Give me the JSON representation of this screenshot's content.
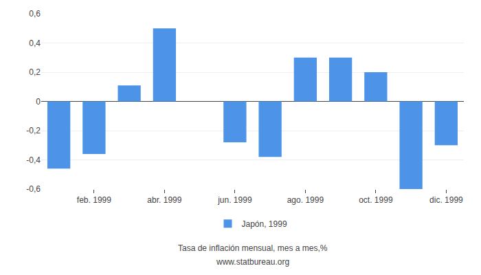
{
  "chart_data": {
    "type": "bar",
    "categories": [
      null,
      "feb. 1999",
      null,
      "abr. 1999",
      null,
      "jun. 1999",
      null,
      "ago. 1999",
      null,
      "oct. 1999",
      null,
      "dic. 1999"
    ],
    "series": [
      {
        "name": "Japón, 1999",
        "color": "#4d94e8",
        "values": [
          -0.46,
          -0.36,
          0.11,
          0.5,
          0.0,
          -0.28,
          -0.38,
          0.3,
          0.3,
          0.2,
          -0.6,
          -0.3
        ]
      }
    ],
    "ylim": [
      -0.6,
      0.6
    ],
    "yticks": [
      {
        "value": -0.6,
        "label": "-0,6"
      },
      {
        "value": -0.4,
        "label": "-0,4"
      },
      {
        "value": -0.2,
        "label": "-0,2"
      },
      0,
      {
        "value": 0.2,
        "label": "0,2"
      },
      {
        "value": 0.4,
        "label": "0,4"
      },
      {
        "value": 0.6,
        "label": "0,6"
      }
    ],
    "grid": true,
    "legend": "bottom",
    "annotations": [
      "Tasa de inflación mensual, mes a mes,%",
      "www.statbureau.org"
    ]
  }
}
